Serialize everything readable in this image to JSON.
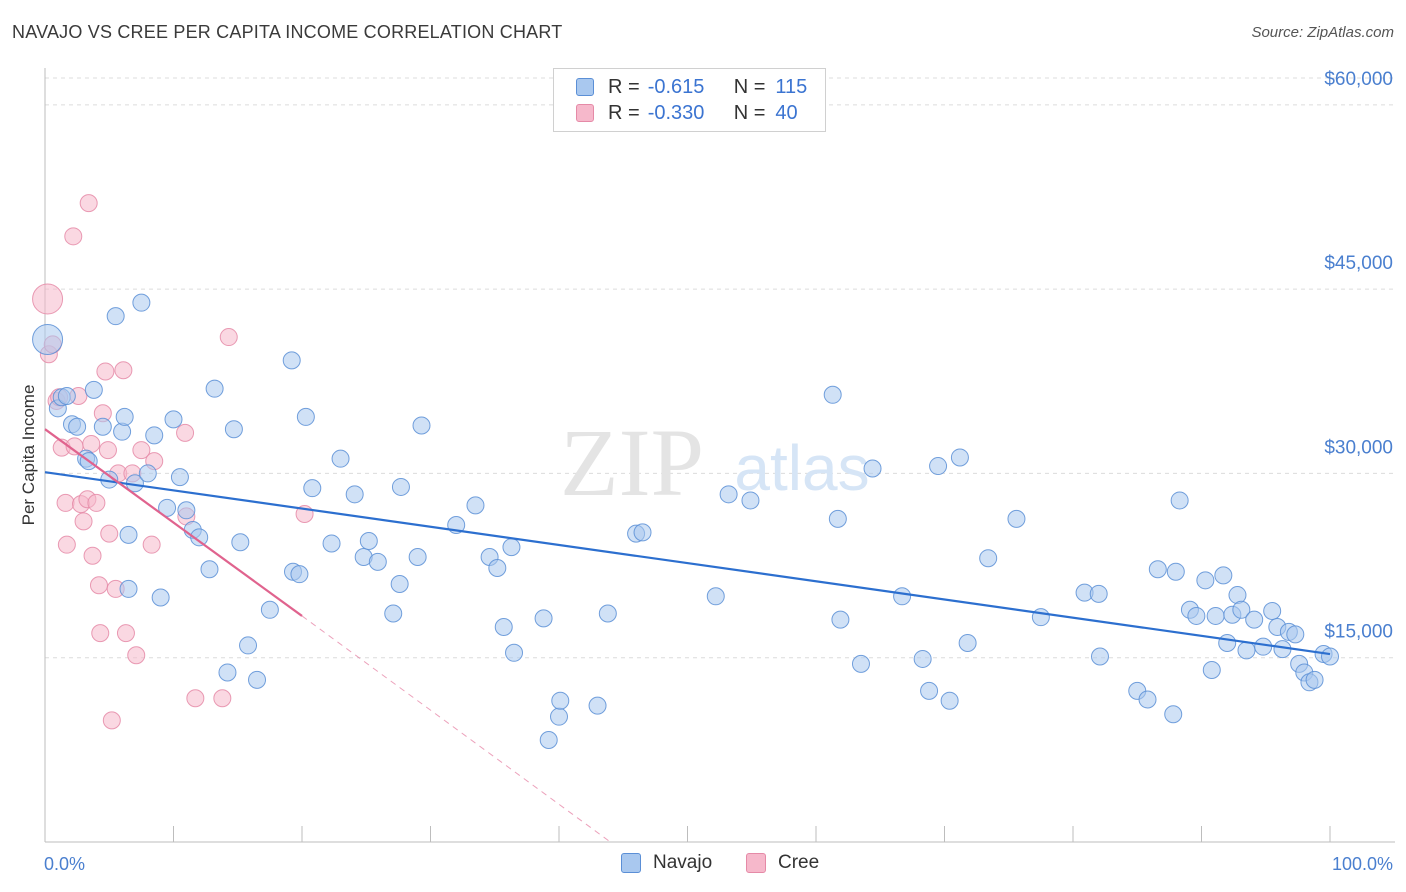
{
  "header": {
    "title": "NAVAJO VS CREE PER CAPITA INCOME CORRELATION CHART",
    "source": "Source: ZipAtlas.com"
  },
  "watermark": {
    "zip": "ZIP",
    "atlas": "atlas"
  },
  "legend": {
    "rows": [
      {
        "r_label": "R =",
        "r_value": "-0.615",
        "n_label": "N =",
        "n_value": "115"
      },
      {
        "r_label": "R =",
        "r_value": "-0.330",
        "n_label": "N =",
        "n_value": "40"
      }
    ]
  },
  "bottom_legend": {
    "navajo": "Navajo",
    "cree": "Cree"
  },
  "colors": {
    "navajo_fill": "#a9c8ef",
    "navajo_stroke": "#5b8fd6",
    "navajo_line": "#2c6fcf",
    "cree_fill": "#f6b8cb",
    "cree_stroke": "#e58aa7",
    "cree_line": "#e0638e",
    "axis_text": "#4a7fcf",
    "grid": "#dcdcdc"
  },
  "chart_data": {
    "type": "scatter",
    "title": "NAVAJO VS CREE PER CAPITA INCOME CORRELATION CHART",
    "xlabel": "",
    "ylabel": "Per Capita Income",
    "xlim": [
      0,
      100
    ],
    "ylim": [
      0,
      63000
    ],
    "x_tick_labels": [
      "0.0%",
      "100.0%"
    ],
    "y_ticks": [
      15000,
      30000,
      45000,
      60000
    ],
    "y_tick_labels": [
      "$15,000",
      "$30,000",
      "$45,000",
      "$60,000"
    ],
    "grid": true,
    "legend_position": "top-center",
    "series": [
      {
        "name": "Navajo",
        "r": -0.615,
        "n": 115,
        "trend": {
          "x": [
            0,
            100
          ],
          "y": [
            30100,
            15300
          ]
        },
        "points": [
          [
            0.2,
            40900
          ],
          [
            1.0,
            35300
          ],
          [
            1.3,
            36200
          ],
          [
            1.7,
            36300
          ],
          [
            2.1,
            34000
          ],
          [
            2.5,
            33800
          ],
          [
            3.2,
            31200
          ],
          [
            3.4,
            31000
          ],
          [
            3.8,
            36800
          ],
          [
            4.5,
            33800
          ],
          [
            5.0,
            29500
          ],
          [
            5.5,
            42800
          ],
          [
            6.0,
            33400
          ],
          [
            6.2,
            34600
          ],
          [
            6.5,
            25000
          ],
          [
            6.5,
            20600
          ],
          [
            7.0,
            29200
          ],
          [
            7.5,
            43900
          ],
          [
            8.0,
            30000
          ],
          [
            8.5,
            33100
          ],
          [
            9.0,
            19900
          ],
          [
            9.5,
            27200
          ],
          [
            10.0,
            34400
          ],
          [
            10.5,
            29700
          ],
          [
            11.0,
            27000
          ],
          [
            11.5,
            25400
          ],
          [
            12.0,
            24800
          ],
          [
            12.8,
            22200
          ],
          [
            13.2,
            36900
          ],
          [
            14.2,
            13800
          ],
          [
            14.7,
            33600
          ],
          [
            15.2,
            24400
          ],
          [
            15.8,
            16000
          ],
          [
            16.5,
            13200
          ],
          [
            17.5,
            18900
          ],
          [
            19.2,
            39200
          ],
          [
            19.3,
            22000
          ],
          [
            19.8,
            21800
          ],
          [
            20.3,
            34600
          ],
          [
            20.8,
            28800
          ],
          [
            22.3,
            24300
          ],
          [
            23.0,
            31200
          ],
          [
            24.1,
            28300
          ],
          [
            24.8,
            23200
          ],
          [
            25.2,
            24500
          ],
          [
            25.9,
            22800
          ],
          [
            27.1,
            18600
          ],
          [
            27.6,
            21000
          ],
          [
            27.7,
            28900
          ],
          [
            29.0,
            23200
          ],
          [
            29.3,
            33900
          ],
          [
            32.0,
            25800
          ],
          [
            33.5,
            27400
          ],
          [
            34.6,
            23200
          ],
          [
            35.2,
            22300
          ],
          [
            35.7,
            17500
          ],
          [
            36.3,
            24000
          ],
          [
            36.5,
            15400
          ],
          [
            38.8,
            18200
          ],
          [
            39.2,
            8300
          ],
          [
            40.0,
            10200
          ],
          [
            40.1,
            11500
          ],
          [
            43.0,
            11100
          ],
          [
            43.8,
            18600
          ],
          [
            46.0,
            25100
          ],
          [
            46.5,
            25200
          ],
          [
            52.2,
            20000
          ],
          [
            53.2,
            28300
          ],
          [
            54.9,
            27800
          ],
          [
            61.3,
            36400
          ],
          [
            61.7,
            26300
          ],
          [
            61.9,
            18100
          ],
          [
            63.5,
            14500
          ],
          [
            64.4,
            30400
          ],
          [
            66.7,
            20000
          ],
          [
            68.3,
            14900
          ],
          [
            68.8,
            12300
          ],
          [
            69.5,
            30600
          ],
          [
            70.4,
            11500
          ],
          [
            71.2,
            31300
          ],
          [
            71.8,
            16200
          ],
          [
            73.4,
            23100
          ],
          [
            75.6,
            26300
          ],
          [
            77.5,
            18300
          ],
          [
            80.9,
            20300
          ],
          [
            82.0,
            20200
          ],
          [
            82.1,
            15100
          ],
          [
            85.0,
            12300
          ],
          [
            85.8,
            11600
          ],
          [
            86.6,
            22200
          ],
          [
            87.8,
            10400
          ],
          [
            88.0,
            22000
          ],
          [
            88.3,
            27800
          ],
          [
            89.1,
            18900
          ],
          [
            89.6,
            18400
          ],
          [
            90.3,
            21300
          ],
          [
            90.8,
            14000
          ],
          [
            91.1,
            18400
          ],
          [
            91.7,
            21700
          ],
          [
            92.0,
            16200
          ],
          [
            92.4,
            18500
          ],
          [
            92.8,
            20100
          ],
          [
            93.1,
            18900
          ],
          [
            93.5,
            15600
          ],
          [
            94.1,
            18100
          ],
          [
            94.8,
            15900
          ],
          [
            95.5,
            18800
          ],
          [
            95.9,
            17500
          ],
          [
            96.3,
            15700
          ],
          [
            96.8,
            17100
          ],
          [
            97.3,
            16900
          ],
          [
            97.6,
            14500
          ],
          [
            98.0,
            13800
          ],
          [
            98.4,
            13000
          ],
          [
            98.8,
            13200
          ],
          [
            99.5,
            15300
          ],
          [
            100.0,
            15100
          ]
        ]
      },
      {
        "name": "Cree",
        "r": -0.33,
        "n": 40,
        "trend": {
          "x": [
            0,
            20
          ],
          "y": [
            33600,
            18400
          ]
        },
        "trend_dashed_extension": {
          "x": [
            20,
            44
          ],
          "y": [
            18400,
            0
          ]
        },
        "points": [
          [
            0.2,
            44200
          ],
          [
            0.3,
            39700
          ],
          [
            0.6,
            40500
          ],
          [
            0.9,
            35900
          ],
          [
            1.1,
            36200
          ],
          [
            1.3,
            32100
          ],
          [
            1.6,
            27600
          ],
          [
            1.7,
            24200
          ],
          [
            2.2,
            49300
          ],
          [
            2.3,
            32200
          ],
          [
            2.6,
            36300
          ],
          [
            2.8,
            27500
          ],
          [
            3.0,
            26100
          ],
          [
            3.3,
            27900
          ],
          [
            3.4,
            52000
          ],
          [
            3.6,
            32400
          ],
          [
            3.7,
            23300
          ],
          [
            4.0,
            27600
          ],
          [
            4.2,
            20900
          ],
          [
            4.3,
            17000
          ],
          [
            4.5,
            34900
          ],
          [
            4.7,
            38300
          ],
          [
            4.9,
            31900
          ],
          [
            5.0,
            25100
          ],
          [
            5.2,
            9900
          ],
          [
            5.5,
            20600
          ],
          [
            5.7,
            30000
          ],
          [
            6.1,
            38400
          ],
          [
            6.3,
            17000
          ],
          [
            6.8,
            30000
          ],
          [
            7.1,
            15200
          ],
          [
            7.5,
            31900
          ],
          [
            8.3,
            24200
          ],
          [
            8.5,
            31000
          ],
          [
            10.9,
            33300
          ],
          [
            11.0,
            26500
          ],
          [
            11.7,
            11700
          ],
          [
            13.8,
            11700
          ],
          [
            14.3,
            41100
          ],
          [
            20.2,
            26700
          ]
        ]
      }
    ]
  }
}
